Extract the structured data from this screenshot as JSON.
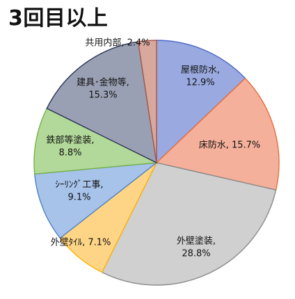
{
  "chart_data": {
    "type": "pie",
    "title": "3回目以上",
    "series": [
      {
        "values": [
          12.9,
          15.7,
          28.8,
          7.1,
          9.1,
          8.8,
          15.3,
          2.4
        ]
      }
    ],
    "categories": [
      "屋根防水",
      "床防水",
      "外壁塗装",
      "外壁ﾀｲﾙ",
      "ｼｰﾘﾝｸﾞ工事",
      "鉄部等塗装",
      "建具･金物等",
      "共用内部"
    ],
    "data_labels": [
      [
        "屋根防水,",
        "12.9%"
      ],
      [
        "床防水, 15.7%"
      ],
      [
        "外壁塗装,",
        "28.8%"
      ],
      [
        "外壁ﾀｲﾙ, 7.1%"
      ],
      [
        "ｼｰﾘﾝｸﾞ工事,",
        "9.1%"
      ],
      [
        "鉄部等塗装,",
        "8.8%"
      ],
      [
        "建具･金物等,",
        "15.3%"
      ],
      [
        "共用内部, 2.4%"
      ]
    ],
    "colors": [
      "#9aaae0",
      "#f4b09a",
      "#d0d0d0",
      "#fed586",
      "#a7c3ea",
      "#b2d99a",
      "#9aa0b3",
      "#d8a89d"
    ],
    "stroke_colors": [
      "#4c66c9",
      "#e36e3f",
      "#8a8a8a",
      "#ffb400",
      "#4f80c3",
      "#75b247",
      "#2a3555",
      "#a65a49"
    ],
    "legend": "none"
  }
}
